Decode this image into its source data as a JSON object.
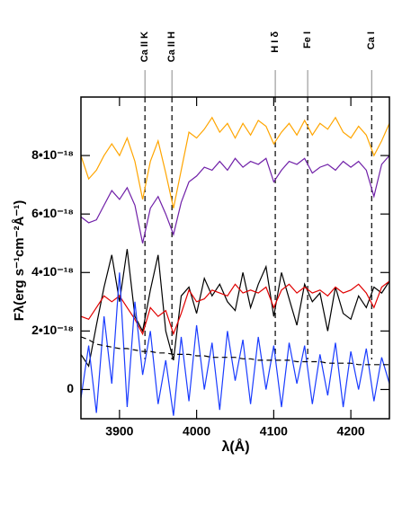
{
  "chart_data": {
    "type": "line",
    "x_label": "λ(Å)",
    "y_label": "Fλ(erg s⁻¹cm⁻²Å⁻¹)",
    "x": [
      3850,
      3860,
      3870,
      3880,
      3890,
      3900,
      3910,
      3920,
      3930,
      3940,
      3950,
      3960,
      3970,
      3980,
      3990,
      4000,
      4010,
      4020,
      4030,
      4040,
      4050,
      4060,
      4070,
      4080,
      4090,
      4100,
      4110,
      4120,
      4130,
      4140,
      4150,
      4160,
      4170,
      4180,
      4190,
      4200,
      4210,
      4220,
      4230,
      4240,
      4250
    ],
    "xlim": [
      3850,
      4250
    ],
    "xticks": [
      3900,
      4000,
      4100,
      4200
    ],
    "ylim": [
      -1e-18,
      1e-17
    ],
    "yticks": [
      0,
      {
        "value": 2e-18,
        "label": "2•10⁻¹⁸"
      },
      {
        "value": 4e-18,
        "label": "4•10⁻¹⁸"
      },
      {
        "value": 6e-18,
        "label": "6•10⁻¹⁸"
      },
      {
        "value": 8e-18,
        "label": "8•10⁻¹⁸"
      }
    ],
    "annotations": [
      {
        "label": "Ca II K",
        "x": 3933
      },
      {
        "label": "Ca II H",
        "x": 3968
      },
      {
        "label": "H I δ",
        "x": 4102
      },
      {
        "label": "Fe I",
        "x": 4144
      },
      {
        "label": "Ca I",
        "x": 4227
      }
    ],
    "series": [
      {
        "color": "#ffa500",
        "values": [
          8e-18,
          7.2e-18,
          7.5e-18,
          8e-18,
          8.4e-18,
          8e-18,
          8.6e-18,
          7.8e-18,
          6.5e-18,
          7.8e-18,
          8.5e-18,
          7.4e-18,
          6.2e-18,
          7.5e-18,
          8.8e-18,
          8.6e-18,
          8.9e-18,
          9.3e-18,
          8.8e-18,
          9.1e-18,
          8.6e-18,
          9.1e-18,
          8.7e-18,
          9.2e-18,
          9e-18,
          8.4e-18,
          8.8e-18,
          9.1e-18,
          8.7e-18,
          9.2e-18,
          8.7e-18,
          9.1e-18,
          8.9e-18,
          9.3e-18,
          8.8e-18,
          8.6e-18,
          9e-18,
          8.7e-18,
          8e-18,
          8.5e-18,
          9.1e-18
        ]
      },
      {
        "color": "#7020a8",
        "values": [
          5.9e-18,
          5.7e-18,
          5.8e-18,
          6.3e-18,
          6.8e-18,
          6.5e-18,
          6.9e-18,
          6.3e-18,
          5e-18,
          6.2e-18,
          6.6e-18,
          6e-18,
          5.3e-18,
          6.4e-18,
          7.1e-18,
          7.3e-18,
          7.6e-18,
          7.5e-18,
          7.8e-18,
          7.5e-18,
          7.9e-18,
          7.6e-18,
          7.8e-18,
          7.7e-18,
          7.9e-18,
          7.1e-18,
          7.5e-18,
          7.8e-18,
          7.7e-18,
          7.9e-18,
          7.4e-18,
          7.6e-18,
          7.7e-18,
          7.5e-18,
          7.8e-18,
          7.6e-18,
          7.8e-18,
          7.5e-18,
          6.6e-18,
          7.7e-18,
          8e-18
        ]
      },
      {
        "color": "#000000",
        "values": [
          1.2e-18,
          8e-19,
          2.2e-18,
          3.5e-18,
          4.6e-18,
          3e-18,
          4.8e-18,
          2.5e-18,
          2e-18,
          3.4e-18,
          4.6e-18,
          2e-18,
          1e-18,
          3.2e-18,
          3.5e-18,
          2.6e-18,
          3.8e-18,
          3.2e-18,
          3.6e-18,
          3e-18,
          2.7e-18,
          4e-18,
          2.8e-18,
          3.6e-18,
          4.2e-18,
          2.5e-18,
          4e-18,
          3.1e-18,
          2.2e-18,
          3.6e-18,
          3e-18,
          3.3e-18,
          2e-18,
          3.5e-18,
          2.6e-18,
          2.4e-18,
          3.2e-18,
          2.8e-18,
          3.5e-18,
          3.3e-18,
          3.7e-18
        ]
      },
      {
        "color": "#e00000",
        "values": [
          2.5e-18,
          2.4e-18,
          2.8e-18,
          3.2e-18,
          3e-18,
          3.2e-18,
          2.8e-18,
          2.4e-18,
          1.9e-18,
          2.8e-18,
          2.5e-18,
          2.7e-18,
          1.9e-18,
          2.6e-18,
          3.4e-18,
          3e-18,
          3.1e-18,
          3.4e-18,
          3.3e-18,
          3.2e-18,
          3.6e-18,
          3.3e-18,
          3.4e-18,
          3.3e-18,
          3.5e-18,
          2.8e-18,
          3.4e-18,
          3.6e-18,
          3.3e-18,
          3.5e-18,
          3.3e-18,
          3.4e-18,
          3.2e-18,
          3.5e-18,
          3.3e-18,
          3.4e-18,
          3.6e-18,
          3.3e-18,
          2.8e-18,
          3.5e-18,
          3.7e-18
        ]
      },
      {
        "color": "#1a3cff",
        "values": [
          -3e-19,
          1.5e-18,
          -8e-19,
          2.5e-18,
          2e-19,
          4e-18,
          -6e-19,
          3e-18,
          5e-19,
          2e-18,
          -5e-19,
          1e-18,
          -9e-19,
          1.8e-18,
          -4e-19,
          2.2e-18,
          0.0,
          1.6e-18,
          -7e-19,
          2e-18,
          3e-19,
          1.7e-18,
          -5e-19,
          1.8e-18,
          0.0,
          1.5e-18,
          -6e-19,
          1.6e-18,
          2e-19,
          1.5e-18,
          -5e-19,
          1.2e-18,
          -2e-19,
          1.6e-18,
          -6e-19,
          1.3e-18,
          0.0,
          1.4e-18,
          -4e-19,
          1.1e-18,
          2e-19
        ]
      },
      {
        "color": "#000000",
        "dashed": true,
        "values": [
          1.8e-18,
          1.7e-18,
          1.55e-18,
          1.5e-18,
          1.45e-18,
          1.4e-18,
          1.4e-18,
          1.35e-18,
          1.3e-18,
          1.3e-18,
          1.25e-18,
          1.25e-18,
          1.2e-18,
          1.2e-18,
          1.2e-18,
          1.15e-18,
          1.15e-18,
          1.1e-18,
          1.1e-18,
          1.1e-18,
          1.1e-18,
          1.05e-18,
          1.05e-18,
          1e-18,
          1e-18,
          1e-18,
          1e-18,
          1e-18,
          9.5e-19,
          9.5e-19,
          9.5e-19,
          9.5e-19,
          9e-19,
          9e-19,
          9e-19,
          9e-19,
          8.5e-19,
          8.5e-19,
          8.5e-19,
          8.5e-19,
          8.5e-19
        ]
      }
    ]
  }
}
